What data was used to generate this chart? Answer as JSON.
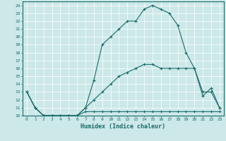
{
  "xlabel": "Humidex (Indice chaleur)",
  "bg_color": "#cce8e8",
  "grid_color": "#b0d4d4",
  "line_color": "#1a6b6b",
  "xlim": [
    -0.5,
    23.5
  ],
  "ylim": [
    10,
    24.5
  ],
  "xticks": [
    0,
    1,
    2,
    3,
    4,
    5,
    6,
    7,
    8,
    9,
    10,
    11,
    12,
    13,
    14,
    15,
    16,
    17,
    18,
    19,
    20,
    21,
    22,
    23
  ],
  "yticks": [
    10,
    11,
    12,
    13,
    14,
    15,
    16,
    17,
    18,
    19,
    20,
    21,
    22,
    23,
    24
  ],
  "line1_x": [
    0,
    1,
    2,
    3,
    4,
    5,
    6,
    7,
    8,
    9,
    10,
    11,
    12,
    13,
    14,
    15,
    16,
    17,
    18,
    19,
    20,
    21,
    22,
    23
  ],
  "line1_y": [
    13,
    11,
    10,
    10,
    10,
    10,
    10,
    10.5,
    10.5,
    10.5,
    10.5,
    10.5,
    10.5,
    10.5,
    10.5,
    10.5,
    10.5,
    10.5,
    10.5,
    10.5,
    10.5,
    10.5,
    10.5,
    10.5
  ],
  "line2_x": [
    0,
    1,
    2,
    3,
    4,
    5,
    6,
    7,
    8,
    9,
    10,
    11,
    12,
    13,
    14,
    15,
    16,
    17,
    18,
    19,
    20,
    21,
    22,
    23
  ],
  "line2_y": [
    13,
    11,
    10,
    10,
    10,
    10,
    10,
    11,
    12,
    13,
    14,
    15,
    15.5,
    16,
    16.5,
    16.5,
    16,
    16,
    16,
    16,
    16,
    13,
    13,
    11
  ],
  "line3_x": [
    0,
    1,
    2,
    3,
    4,
    5,
    6,
    7,
    8,
    9,
    10,
    11,
    12,
    13,
    14,
    15,
    16,
    17,
    18,
    19,
    20,
    21,
    22,
    23
  ],
  "line3_y": [
    13,
    11,
    10,
    10,
    10,
    10,
    10,
    11,
    14.5,
    19,
    20,
    21,
    22,
    22,
    23.5,
    24,
    23.5,
    23,
    21.5,
    18,
    16,
    12.5,
    13.5,
    11
  ]
}
